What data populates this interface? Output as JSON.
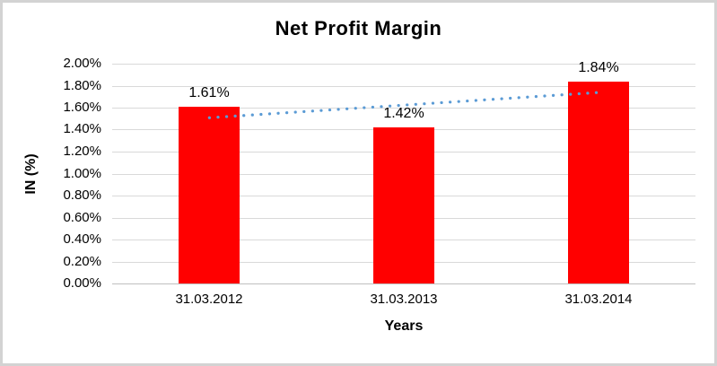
{
  "chart_data": {
    "type": "bar",
    "title": "Net Profit Margin",
    "xlabel": "Years",
    "ylabel": "IN (%)",
    "categories": [
      "31.03.2012",
      "31.03.2013",
      "31.03.2014"
    ],
    "values": [
      1.61,
      1.42,
      1.84
    ],
    "data_labels": [
      "1.61%",
      "1.42%",
      "1.84%"
    ],
    "ylim": [
      0,
      2.0
    ],
    "ytick_step": 0.2,
    "ytick_labels": [
      "0.00%",
      "0.20%",
      "0.40%",
      "0.60%",
      "0.80%",
      "1.00%",
      "1.20%",
      "1.40%",
      "1.60%",
      "1.80%",
      "2.00%"
    ],
    "grid": true,
    "legend": false,
    "trendline": {
      "type": "linear",
      "style": "dotted",
      "start_value": 1.508,
      "end_value": 1.738
    }
  },
  "colors": {
    "bar": "#ff0000",
    "trendline": "#5b9bd5",
    "gridline": "#d9d9d9",
    "axis_line": "#bfbfbf",
    "text": "#000000",
    "frame_border": "#d3d3d3",
    "background": "#ffffff"
  }
}
